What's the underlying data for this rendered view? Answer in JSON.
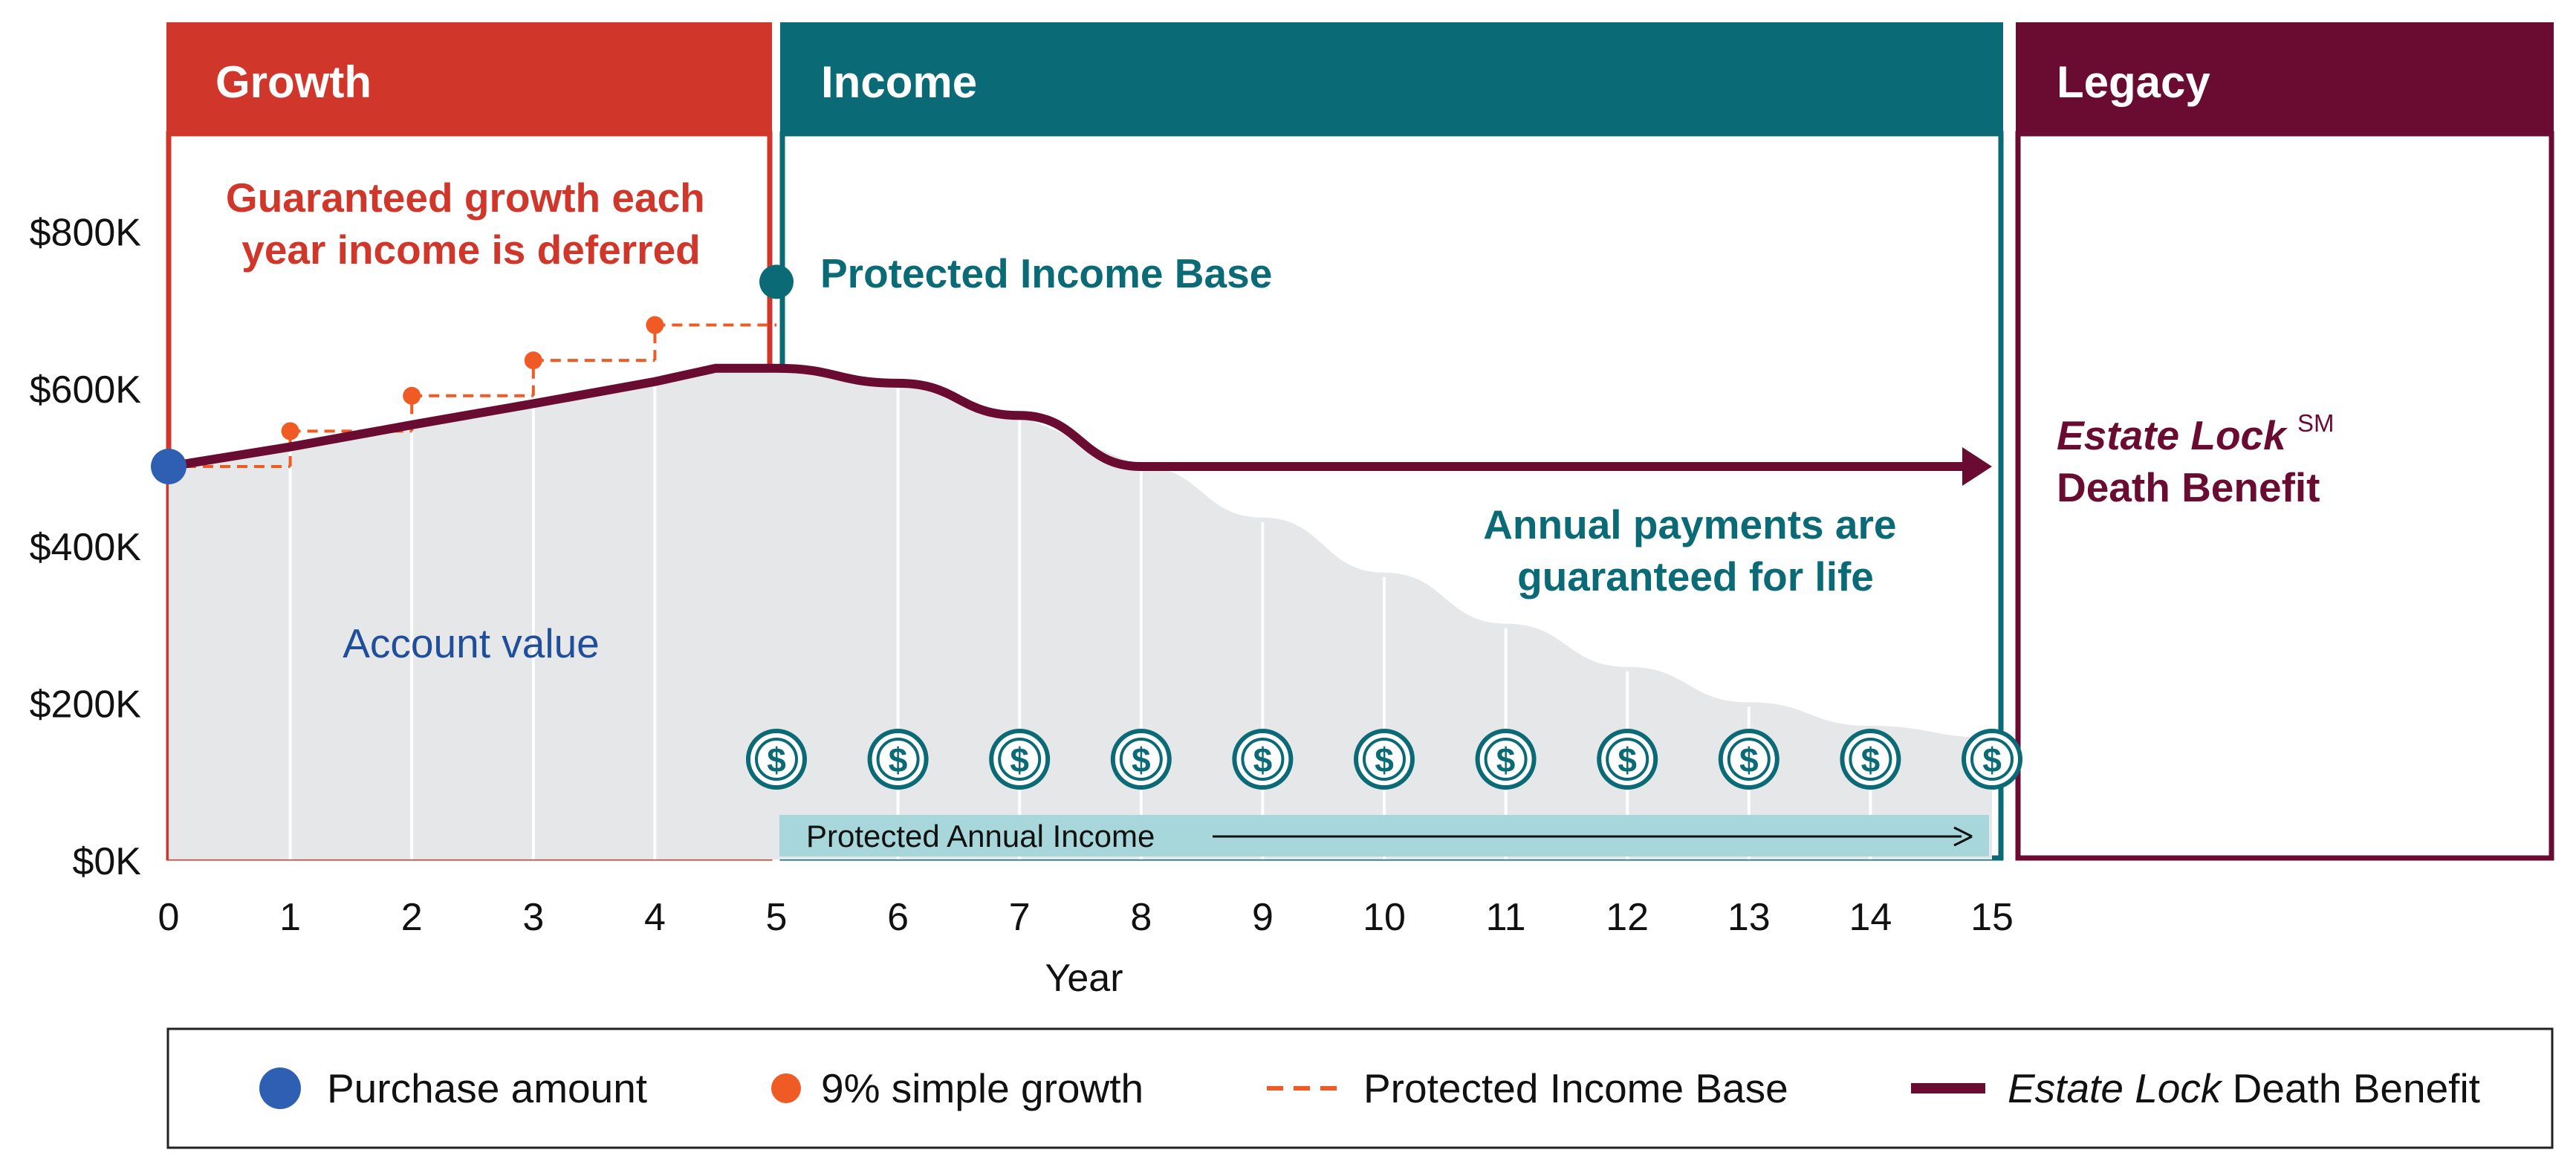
{
  "colors": {
    "growth": "#D0362A",
    "income": "#0A6A76",
    "legacy": "#6A0B32",
    "account_area": "#E6E7E8",
    "purchase_dot": "#2F5FB3",
    "growth_dot": "#F05A24",
    "income_bar": "#A7D6DB",
    "account_text": "#1F4E9B",
    "axis_text": "#111111"
  },
  "sections": {
    "growth": "Growth",
    "income": "Income",
    "legacy": "Legacy"
  },
  "annotations": {
    "growth_line1": "Guaranteed growth each",
    "growth_line2": "year income is deferred",
    "protected_income_base": "Protected Income Base",
    "account_value": "Account value",
    "payments_line1": "Annual payments are",
    "payments_line2": "guaranteed for life",
    "estate_lock": "Estate Lock",
    "estate_lock_sup": "SM",
    "death_benefit": "Death Benefit",
    "annual_income_bar": "Protected Annual Income",
    "dollar_icon": "$"
  },
  "legend": {
    "purchase": "Purchase amount",
    "growth": "9% simple growth",
    "base": "Protected Income Base",
    "death_italic": "Estate Lock",
    "death_rest": " Death Benefit"
  },
  "chart_data": {
    "type": "area",
    "xlabel": "Year",
    "ylabel": "",
    "xlim": [
      0,
      15
    ],
    "ylim": [
      0,
      800
    ],
    "x_ticks": [
      "0",
      "1",
      "2",
      "3",
      "4",
      "5",
      "6",
      "7",
      "8",
      "9",
      "10",
      "11",
      "12",
      "13",
      "14",
      "15"
    ],
    "y_ticks": [
      "$0K",
      "$200K",
      "$400K",
      "$600K",
      "$800K"
    ],
    "y_tick_values": [
      0,
      200,
      400,
      600,
      800
    ],
    "series": [
      {
        "name": "Account value",
        "kind": "area",
        "points": [
          [
            0,
            500
          ],
          [
            1,
            525
          ],
          [
            2,
            553
          ],
          [
            3,
            580
          ],
          [
            4,
            608
          ],
          [
            4.5,
            625
          ],
          [
            5,
            625
          ],
          [
            6,
            606
          ],
          [
            7,
            565
          ],
          [
            8,
            500
          ],
          [
            9,
            435
          ],
          [
            10,
            365
          ],
          [
            11,
            300
          ],
          [
            12,
            245
          ],
          [
            13,
            200
          ],
          [
            14,
            170
          ],
          [
            15,
            155
          ]
        ]
      },
      {
        "name": "Estate Lock Death Benefit",
        "kind": "line",
        "points": [
          [
            0,
            500
          ],
          [
            1,
            525
          ],
          [
            2,
            553
          ],
          [
            3,
            580
          ],
          [
            4,
            608
          ],
          [
            4.5,
            625
          ],
          [
            5,
            625
          ],
          [
            6,
            606
          ],
          [
            7,
            565
          ],
          [
            8,
            500
          ],
          [
            15,
            500
          ]
        ]
      },
      {
        "name": "Protected Income Base",
        "kind": "step-dashed",
        "points": [
          [
            0,
            500
          ],
          [
            1,
            545
          ],
          [
            2,
            590
          ],
          [
            3,
            635
          ],
          [
            4,
            680
          ],
          [
            5,
            680
          ]
        ]
      },
      {
        "name": "9% simple growth",
        "kind": "points",
        "points": [
          [
            1,
            545
          ],
          [
            2,
            590
          ],
          [
            3,
            635
          ],
          [
            4,
            680
          ]
        ]
      },
      {
        "name": "Purchase amount",
        "kind": "point",
        "points": [
          [
            0,
            500
          ]
        ]
      },
      {
        "name": "Protected Income Base",
        "kind": "point",
        "points": [
          [
            5,
            735
          ]
        ]
      }
    ],
    "income_payment_years": [
      5,
      6,
      7,
      8,
      9,
      10,
      11,
      12,
      13,
      14,
      15
    ]
  }
}
